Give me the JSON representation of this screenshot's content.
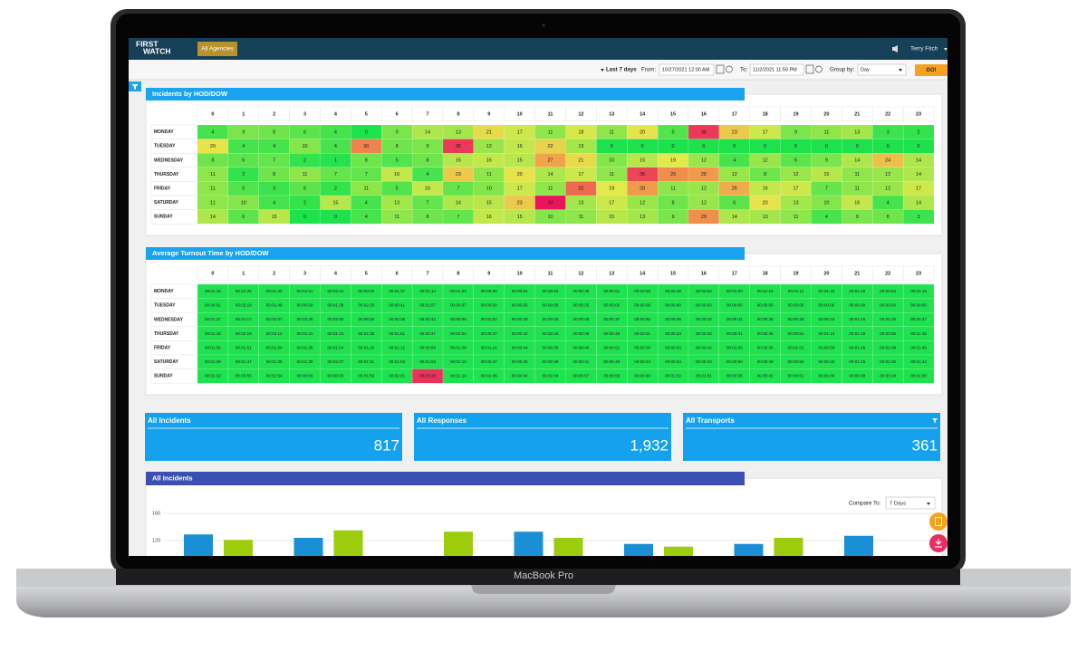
{
  "device_label": "MacBook Pro",
  "nav": {
    "logo": [
      "FIRST",
      "WATCH"
    ],
    "agency": "All Agencies",
    "user": "Terry Fitch"
  },
  "filters": {
    "range": "Last 7 days",
    "from_label": "From:",
    "from": "10/27/2021 12:00 AM",
    "to_label": "To:",
    "to": "11/2/2021 11:59 PM",
    "group_label": "Group by:",
    "group": "Day",
    "go": "GO!"
  },
  "heatmaps": [
    {
      "title": "Incidents by HOD/DOW",
      "columns": [
        0,
        1,
        2,
        3,
        4,
        5,
        6,
        7,
        8,
        9,
        10,
        11,
        12,
        13,
        14,
        15,
        16,
        17,
        18,
        19,
        20,
        21,
        22,
        23
      ],
      "color_scale": [
        {
          "at": 0,
          "color": "#1de24c"
        },
        {
          "at": 0.5,
          "color": "#e6e94b"
        },
        {
          "at": 0.72,
          "color": "#f09a4a"
        },
        {
          "at": 1,
          "color": "#e9145c"
        }
      ],
      "rows": [
        {
          "label": "MONDAY",
          "values": [
            4,
            9,
            8,
            6,
            4,
            0,
            9,
            14,
            13,
            21,
            17,
            11,
            18,
            11,
            20,
            5,
            36,
            23,
            17,
            9,
            11,
            13,
            3,
            2
          ]
        },
        {
          "label": "TUESDAY",
          "values": [
            20,
            4,
            4,
            10,
            4,
            30,
            8,
            9,
            36,
            12,
            16,
            22,
            13,
            0,
            0,
            0,
            0,
            0,
            0,
            0,
            0,
            0,
            0,
            0
          ]
        },
        {
          "label": "WEDNESDAY",
          "values": [
            8,
            6,
            7,
            2,
            1,
            8,
            5,
            8,
            15,
            16,
            15,
            27,
            21,
            10,
            15,
            19,
            12,
            4,
            12,
            6,
            9,
            14,
            24,
            14
          ]
        },
        {
          "label": "THURSDAY",
          "values": [
            11,
            2,
            8,
            11,
            7,
            7,
            16,
            4,
            23,
            11,
            20,
            14,
            17,
            11,
            35,
            29,
            28,
            12,
            8,
            12,
            15,
            11,
            12,
            14
          ]
        },
        {
          "label": "FRIDAY",
          "values": [
            11,
            5,
            3,
            6,
            2,
            11,
            5,
            16,
            7,
            10,
            17,
            11,
            32,
            19,
            28,
            11,
            12,
            26,
            16,
            17,
            7,
            11,
            12,
            17
          ]
        },
        {
          "label": "SATURDAY",
          "values": [
            11,
            10,
            4,
            2,
            15,
            4,
            13,
            7,
            14,
            15,
            23,
            39,
            13,
            17,
            12,
            8,
            12,
            6,
            20,
            13,
            10,
            16,
            4,
            14
          ]
        },
        {
          "label": "SUNDAY",
          "values": [
            14,
            6,
            15,
            0,
            0,
            4,
            11,
            8,
            7,
            16,
            15,
            10,
            11,
            15,
            13,
            9,
            29,
            14,
            13,
            11,
            4,
            9,
            8,
            3
          ]
        }
      ]
    },
    {
      "title": "Average Turnout Time by HOD/DOW",
      "columns": [
        0,
        1,
        2,
        3,
        4,
        5,
        6,
        7,
        8,
        9,
        10,
        11,
        12,
        13,
        14,
        15,
        16,
        17,
        18,
        19,
        20,
        21,
        22,
        23
      ],
      "color": "#1ee34f",
      "highlight": {
        "row": 6,
        "col": 7,
        "color": "#e8335a"
      },
      "rows": [
        {
          "label": "MONDAY",
          "values": [
            "00:01:16",
            "00:01:25",
            "00:01:30",
            "00:02:51",
            "00:02:12",
            "00:00:00",
            "00:01:37",
            "00:01:14",
            "00:01:04",
            "00:00:50",
            "00:00:54",
            "00:00:52",
            "00:00:38",
            "00:00:51",
            "00:00:58",
            "00:00:49",
            "00:00:54",
            "00:01:00",
            "00:01:19",
            "00:01:11",
            "00:01:15",
            "00:01:26",
            "00:00:53",
            "00:01:19"
          ]
        },
        {
          "label": "TUESDAY",
          "values": [
            "00:04:01",
            "00:02:18",
            "00:01:48",
            "00:00:59",
            "00:01:38",
            "00:02:33",
            "00:00:41",
            "00:01:07",
            "00:00:37",
            "00:00:50",
            "00:00:36",
            "00:00:59",
            "00:00:35",
            "00:00:00",
            "00:00:00",
            "00:00:00",
            "00:00:00",
            "00:00:00",
            "00:00:00",
            "00:00:00",
            "00:00:00",
            "00:00:00",
            "00:00:00",
            "00:00:00"
          ]
        },
        {
          "label": "WEDNESDAY",
          "values": [
            "00:01:37",
            "00:01:17",
            "00:02:07",
            "00:02:28",
            "00:02:05",
            "00:06:06",
            "00:02:38",
            "00:00:42",
            "00:00:59",
            "00:01:02",
            "00:00:39",
            "00:00:40",
            "00:00:49",
            "00:00:37",
            "00:00:50",
            "00:00:36",
            "00:00:42",
            "00:00:41",
            "00:00:38",
            "00:00:39",
            "00:00:44",
            "00:01:16",
            "00:01:26",
            "00:02:47"
          ]
        },
        {
          "label": "THURSDAY",
          "values": [
            "00:01:16",
            "00:02:19",
            "00:02:14",
            "00:01:31",
            "00:01:10",
            "00:01:38",
            "00:01:51",
            "00:00:47",
            "00:00:51",
            "00:00:47",
            "00:00:42",
            "00:00:40",
            "00:00:39",
            "00:00:48",
            "00:00:51",
            "00:00:43",
            "00:00:40",
            "00:00:41",
            "00:00:36",
            "00:00:51",
            "00:01:13",
            "00:01:18",
            "00:00:56",
            "00:01:45"
          ]
        },
        {
          "label": "FRIDAY",
          "values": [
            "00:01:35",
            "00:01:51",
            "00:01:54",
            "00:01:38",
            "00:01:14",
            "00:01:10",
            "00:01:12",
            "00:00:59",
            "00:01:28",
            "00:01:14",
            "00:00:44",
            "00:00:38",
            "00:00:46",
            "00:00:51",
            "00:00:36",
            "00:00:43",
            "00:00:42",
            "00:01:09",
            "00:00:36",
            "00:01:01",
            "00:00:58",
            "00:01:49",
            "00:01:08",
            "00:01:45"
          ]
        },
        {
          "label": "SATURDAY",
          "values": [
            "00:01:39",
            "00:01:47",
            "00:01:39",
            "00:01:39",
            "00:02:27",
            "00:01:01",
            "00:01:03",
            "00:01:03",
            "00:01:10",
            "00:00:37",
            "00:00:46",
            "00:00:39",
            "00:00:41",
            "00:00:48",
            "00:00:43",
            "00:00:34",
            "00:00:40",
            "00:00:50",
            "00:00:49",
            "00:00:50",
            "00:00:40",
            "00:01:16",
            "00:01:05",
            "00:01:42"
          ]
        },
        {
          "label": "SUNDAY",
          "values": [
            "00:02:32",
            "00:03:55",
            "00:01:54",
            "00:00:00",
            "00:00:00",
            "00:01:59",
            "00:02:01",
            "00:03:28",
            "00:01:14",
            "00:02:45",
            "00:04:34",
            "00:01:04",
            "00:00:57",
            "00:00:58",
            "00:00:46",
            "00:01:02",
            "00:01:01",
            "00:00:36",
            "00:00:42",
            "00:00:51",
            "00:00:48",
            "00:09:38",
            "00:00:34",
            "00:01:00"
          ]
        }
      ]
    }
  ],
  "kpis": [
    {
      "title": "All Incidents",
      "value": "817"
    },
    {
      "title": "All Responses",
      "value": "1,932"
    },
    {
      "title": "All Transports",
      "value": "361"
    }
  ],
  "chart_data": {
    "type": "bar",
    "title": "All Incidents",
    "compare_label": "Compare To:",
    "compare": "7 Days",
    "series": [
      {
        "color": "#1a8fd6",
        "values": [
          129,
          124,
          null,
          133,
          115,
          115,
          127
        ]
      },
      {
        "color": "#9ccc0c",
        "values": [
          121,
          135,
          133,
          124,
          111,
          124,
          null
        ]
      }
    ],
    "ylim": [
      100,
      160
    ],
    "yticks": [
      120,
      160
    ],
    "grid": true
  }
}
